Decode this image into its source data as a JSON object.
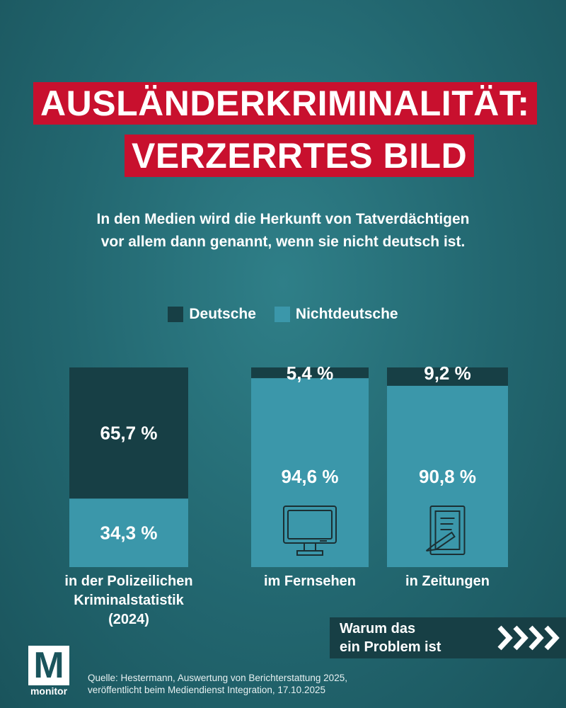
{
  "header": {
    "title_line1": "AUSLÄNDERKRIMINALITÄT:",
    "title_line2": "VERZERRTES BILD",
    "subtitle": "In den Medien wird die Herkunft von Tatverdächtigen\nvor allem dann genannt, wenn sie nicht deutsch ist."
  },
  "chart_data": {
    "type": "bar",
    "stacked": true,
    "title": "AUSLÄNDERKRIMINALITÄT: VERZERRTES BILD",
    "legend_position": "top-center",
    "categories": [
      "in der Polizeilichen\nKriminalstatistik\n(2024)",
      "im Fernsehen",
      "in Zeitungen"
    ],
    "series": [
      {
        "name": "Deutsche",
        "color": "#173f45",
        "values": [
          65.7,
          5.4,
          9.2
        ],
        "labels": [
          "65,7 %",
          "5,4 %",
          "9,2 %"
        ]
      },
      {
        "name": "Nichtdeutsche",
        "color": "#3b97aa",
        "values": [
          34.3,
          94.6,
          90.8
        ],
        "labels": [
          "34,3 %",
          "94,6 %",
          "90,8 %"
        ]
      }
    ],
    "ylim": [
      0,
      100
    ],
    "grid": false,
    "bar_icons": [
      "",
      "tv-icon",
      "newspaper-icon"
    ]
  },
  "cta": {
    "text": "Warum das\nein Problem ist",
    "icon": "chevrons-right-icon"
  },
  "logo": {
    "letter": "M",
    "word": "monitor"
  },
  "source": "Quelle: Hestermann, Auswertung von Berichterstattung 2025,\nveröffentlicht beim Mediendienst Integration, 17.10.2025"
}
